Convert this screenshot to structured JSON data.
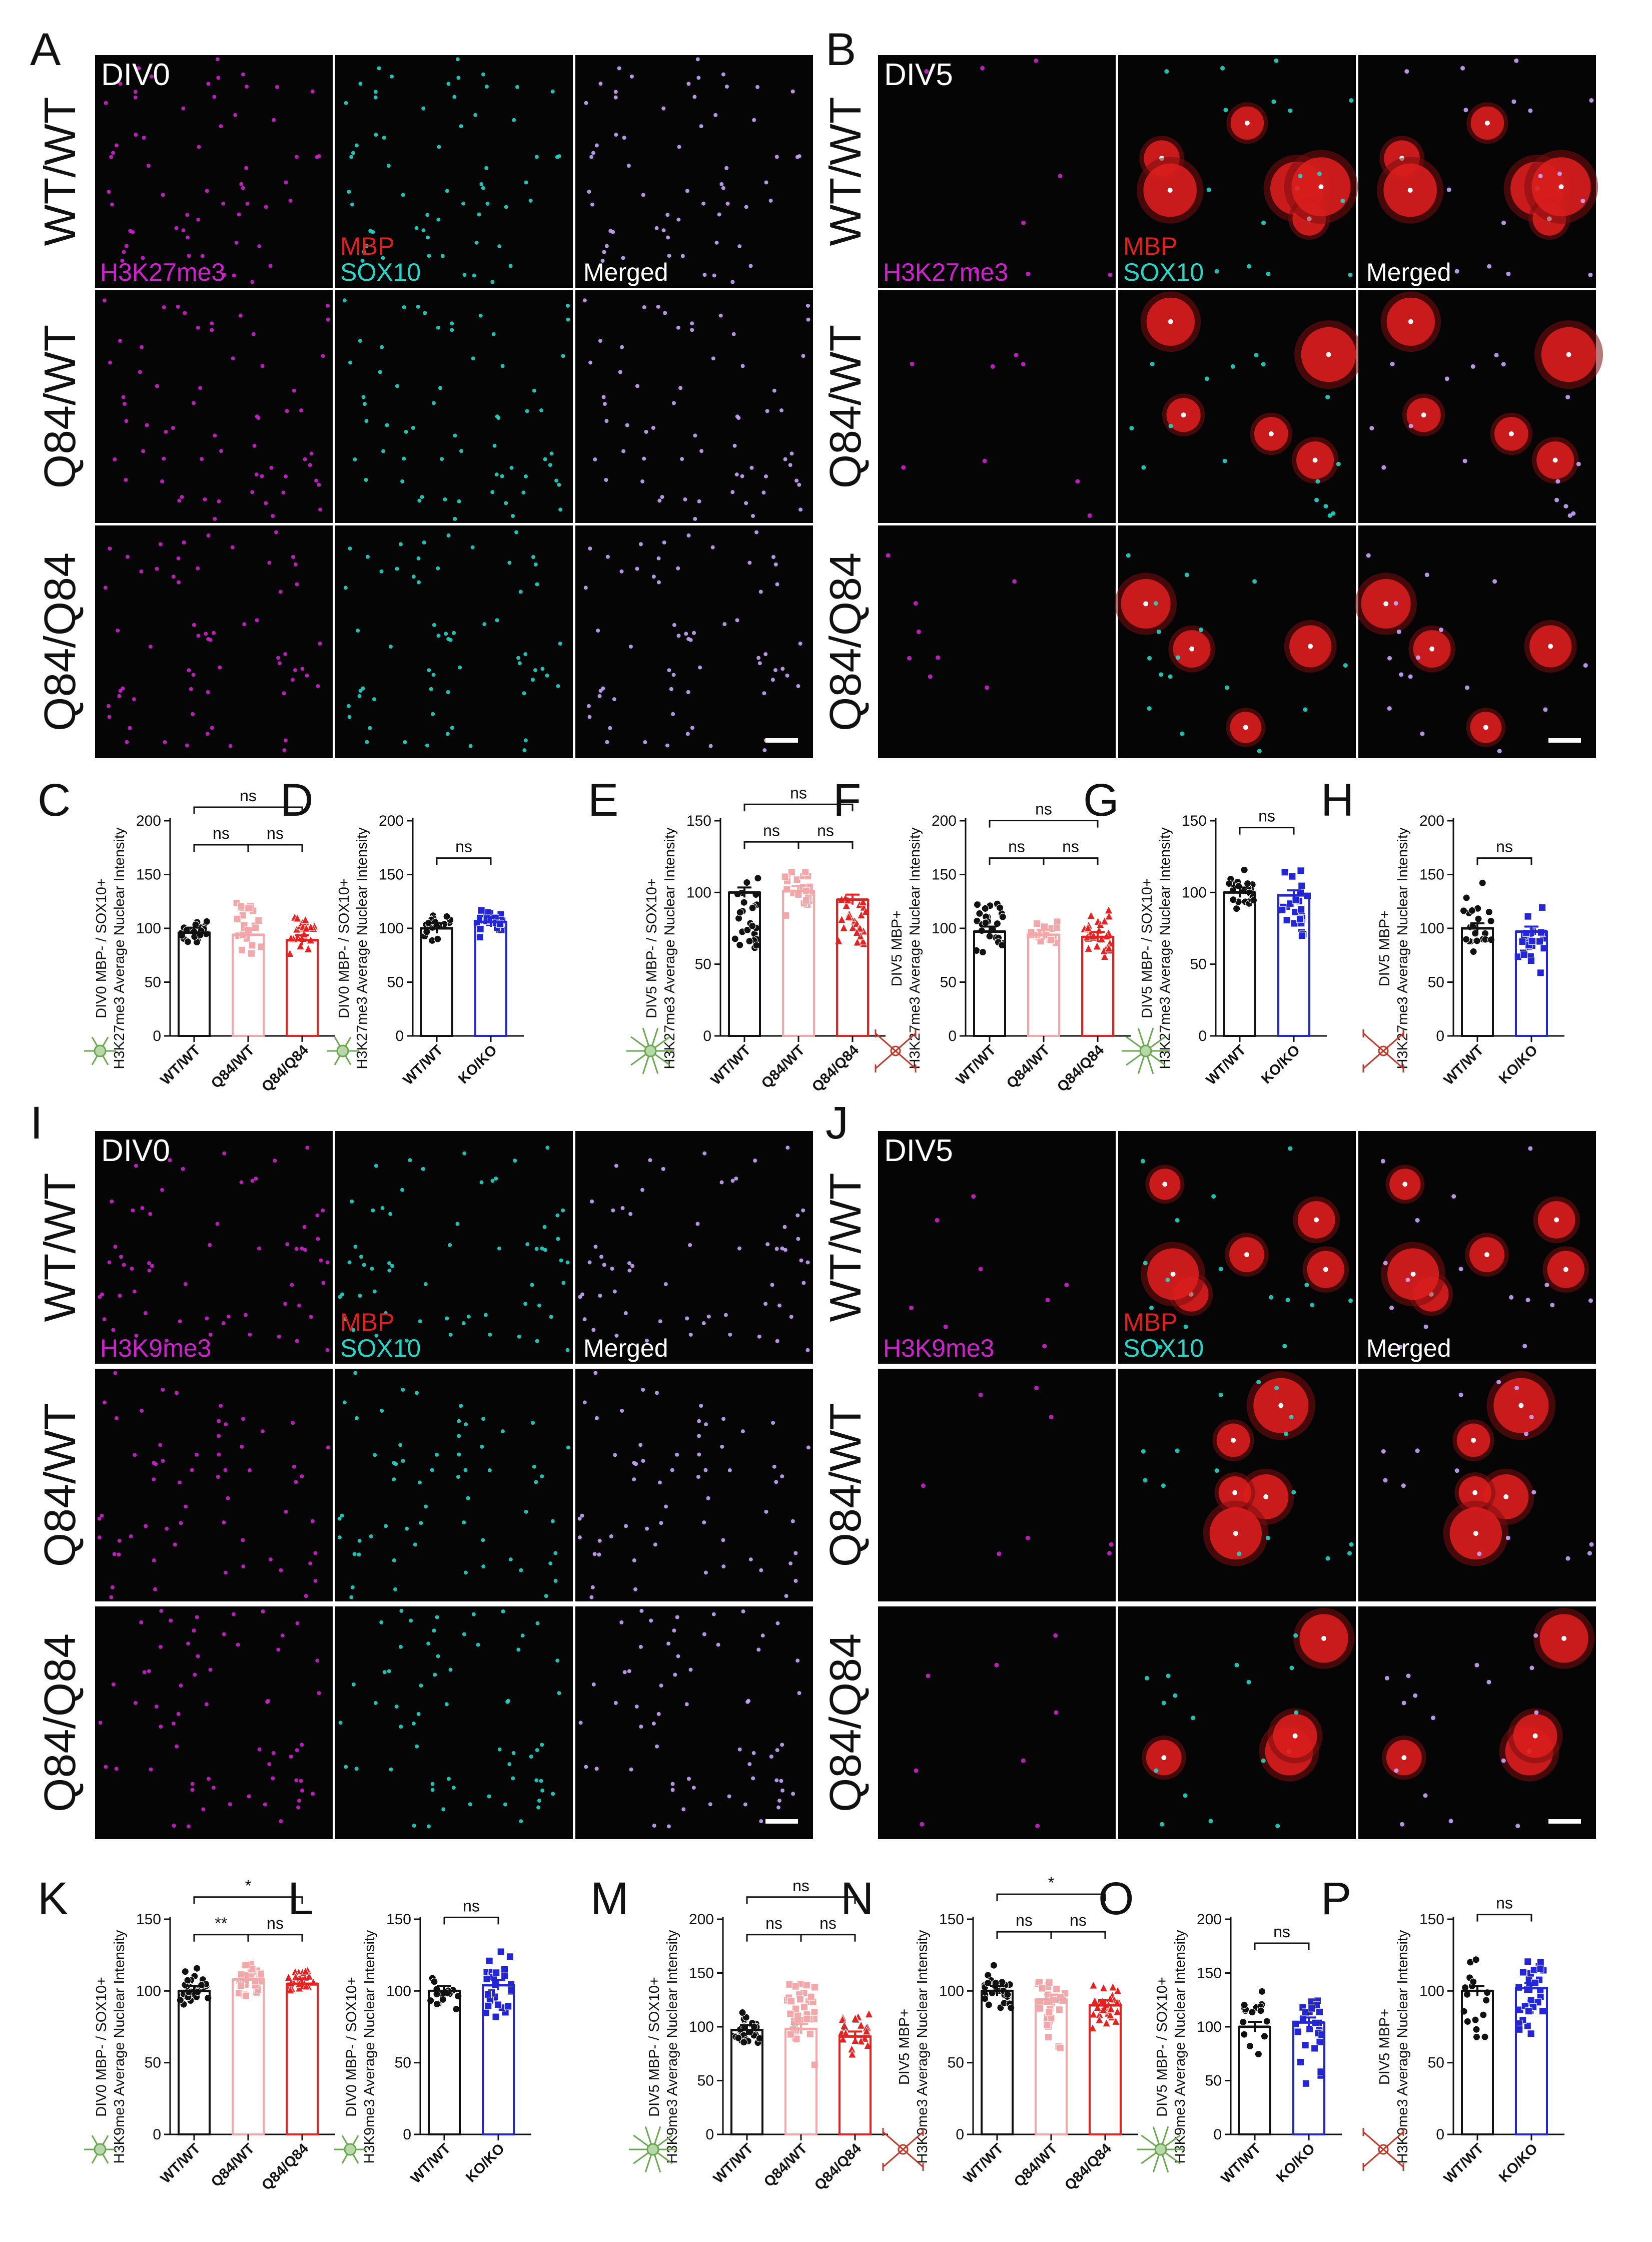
{
  "colors": {
    "WT/WT": "#111111",
    "Q84/WT": "#f4a7a9",
    "Q84/Q84": "#e8201f",
    "KO/KO": "#2326d8",
    "magenta": "#d020d0",
    "cyan": "#22d6c9",
    "red": "#e01f1f",
    "merged": "#c9a6ff",
    "micro_bg": "#050505",
    "opc_icon": "#6aa84f",
    "ol_icon": "#c0392b"
  },
  "icons": [
    "opc-cell-icon",
    "oligodendrocyte-icon"
  ],
  "panels": {
    "A": {
      "letter": "A",
      "div": "DIV0",
      "rows": [
        "WT/WT",
        "Q84/WT",
        "Q84/Q84"
      ],
      "channels": [
        "H3K27me3",
        "MBP",
        "SOX10",
        "Merged"
      ],
      "mature": false
    },
    "B": {
      "letter": "B",
      "div": "DIV5",
      "rows": [
        "WT/WT",
        "Q84/WT",
        "Q84/Q84"
      ],
      "channels": [
        "H3K27me3",
        "MBP",
        "SOX10",
        "Merged"
      ],
      "mature": true
    },
    "I": {
      "letter": "I",
      "div": "DIV0",
      "rows": [
        "WT/WT",
        "Q84/WT",
        "Q84/Q84"
      ],
      "channels": [
        "H3K9me3",
        "MBP",
        "SOX10",
        "Merged"
      ],
      "mature": false
    },
    "J": {
      "letter": "J",
      "div": "DIV5",
      "rows": [
        "WT/WT",
        "Q84/WT",
        "Q84/Q84"
      ],
      "channels": [
        "H3K9me3",
        "MBP",
        "SOX10",
        "Merged"
      ],
      "mature": true
    }
  },
  "chart_data": [
    {
      "id": "C",
      "type": "bar",
      "ylabel": [
        "DIV0 MBP- / SOX10+",
        "H3K27me3 Average Nuclear Intensity"
      ],
      "ylim": [
        0,
        200
      ],
      "ticks": [
        0,
        50,
        100,
        150,
        200
      ],
      "categories": [
        "WT/WT",
        "Q84/WT",
        "Q84/Q84"
      ],
      "values": [
        96,
        94,
        89
      ],
      "marker": [
        "circle",
        "square",
        "triangle"
      ],
      "n": [
        22,
        22,
        24
      ],
      "spread": [
        [
          82,
          110
        ],
        [
          62,
          160
        ],
        [
          60,
          130
        ]
      ],
      "comparisons": [
        [
          0,
          1,
          "ns"
        ],
        [
          1,
          2,
          "ns"
        ],
        [
          0,
          2,
          "ns"
        ]
      ],
      "icon": "opc"
    },
    {
      "id": "D",
      "type": "bar",
      "ylabel": [
        "DIV0 MBP- / SOX10+",
        "H3K27me3 Average Nuclear Intensity"
      ],
      "ylim": [
        0,
        200
      ],
      "ticks": [
        0,
        50,
        100,
        150,
        200
      ],
      "categories": [
        "WT/WT",
        "KO/KO"
      ],
      "values": [
        100,
        106
      ],
      "marker": [
        "circle",
        "square"
      ],
      "n": [
        22,
        26
      ],
      "spread": [
        [
          85,
          118
        ],
        [
          88,
          128
        ]
      ],
      "comparisons": [
        [
          0,
          1,
          "ns"
        ]
      ],
      "icon": "opc"
    },
    {
      "id": "E",
      "type": "bar",
      "ylabel": [
        "DIV5 MBP- / SOX10+",
        "H3K27me3 Average Nuclear Intensity"
      ],
      "ylim": [
        0,
        150
      ],
      "ticks": [
        0,
        50,
        100,
        150
      ],
      "categories": [
        "WT/WT",
        "Q84/WT",
        "Q84/Q84"
      ],
      "values": [
        100,
        101,
        95
      ],
      "marker": [
        "circle",
        "square",
        "triangle"
      ],
      "n": [
        26,
        22,
        26
      ],
      "spread": [
        [
          45,
          120
        ],
        [
          78,
          122
        ],
        [
          40,
          118
        ]
      ],
      "comparisons": [
        [
          0,
          1,
          "ns"
        ],
        [
          1,
          2,
          "ns"
        ],
        [
          0,
          2,
          "ns"
        ]
      ],
      "icon": "ol"
    },
    {
      "id": "F",
      "type": "bar",
      "ylabel": [
        "DIV5 MBP+",
        "H3K27me3 Average Nuclear Intensity"
      ],
      "ylim": [
        0,
        200
      ],
      "ticks": [
        0,
        50,
        100,
        150,
        200
      ],
      "categories": [
        "WT/WT",
        "Q84/WT",
        "Q84/Q84"
      ],
      "values": [
        97,
        94,
        92
      ],
      "marker": [
        "circle",
        "square",
        "triangle"
      ],
      "n": [
        26,
        20,
        28
      ],
      "spread": [
        [
          70,
          140
        ],
        [
          78,
          112
        ],
        [
          55,
          130
        ]
      ],
      "comparisons": [
        [
          0,
          1,
          "ns"
        ],
        [
          1,
          2,
          "ns"
        ],
        [
          0,
          2,
          "ns"
        ]
      ],
      "icon": "mbp"
    },
    {
      "id": "G",
      "type": "bar",
      "ylabel": [
        "DIV5 MBP- / SOX10+",
        "H3K27me3 Average Nuclear Intensity"
      ],
      "ylim": [
        0,
        150
      ],
      "ticks": [
        0,
        50,
        100,
        150
      ],
      "categories": [
        "WT/WT",
        "KO/KO"
      ],
      "values": [
        100,
        98
      ],
      "marker": [
        "circle",
        "square"
      ],
      "n": [
        24,
        24
      ],
      "spread": [
        [
          80,
          122
        ],
        [
          40,
          132
        ]
      ],
      "comparisons": [
        [
          0,
          1,
          "ns"
        ]
      ],
      "icon": "ol"
    },
    {
      "id": "H",
      "type": "bar",
      "ylabel": [
        "DIV5 MBP+",
        "H3K27me3 Average Nuclear Intensity"
      ],
      "ylim": [
        0,
        200
      ],
      "ticks": [
        0,
        50,
        100,
        150,
        200
      ],
      "categories": [
        "WT/WT",
        "KO/KO"
      ],
      "values": [
        100,
        97
      ],
      "marker": [
        "circle",
        "square"
      ],
      "n": [
        22,
        24
      ],
      "spread": [
        [
          50,
          145
        ],
        [
          45,
          132
        ]
      ],
      "comparisons": [
        [
          0,
          1,
          "ns"
        ]
      ],
      "icon": "mbp"
    },
    {
      "id": "K",
      "type": "bar",
      "ylabel": [
        "DIV0 MBP- / SOX10+",
        "H3K9me3 Average Nuclear Intensity"
      ],
      "ylim": [
        0,
        150
      ],
      "ticks": [
        0,
        50,
        100,
        150
      ],
      "categories": [
        "WT/WT",
        "Q84/WT",
        "Q84/Q84"
      ],
      "values": [
        100,
        108,
        105
      ],
      "marker": [
        "circle",
        "square",
        "triangle"
      ],
      "n": [
        30,
        30,
        26
      ],
      "spread": [
        [
          85,
          118
        ],
        [
          90,
          126
        ],
        [
          92,
          122
        ]
      ],
      "comparisons": [
        [
          0,
          1,
          "**"
        ],
        [
          1,
          2,
          "ns"
        ],
        [
          0,
          2,
          "*"
        ]
      ],
      "icon": "opc"
    },
    {
      "id": "L",
      "type": "bar",
      "ylabel": [
        "DIV0 MBP- / SOX10+",
        "H3K9me3 Average Nuclear Intensity"
      ],
      "ylim": [
        0,
        150
      ],
      "ticks": [
        0,
        50,
        100,
        150
      ],
      "categories": [
        "WT/WT",
        "KO/KO"
      ],
      "values": [
        100,
        104
      ],
      "marker": [
        "circle",
        "square"
      ],
      "n": [
        16,
        28
      ],
      "spread": [
        [
          80,
          118
        ],
        [
          70,
          138
        ]
      ],
      "comparisons": [
        [
          0,
          1,
          "ns"
        ]
      ],
      "icon": "opc"
    },
    {
      "id": "M",
      "type": "bar",
      "ylabel": [
        "DIV5 MBP- / SOX10+",
        "H3K9me3 Average Nuclear Intensity"
      ],
      "ylim": [
        0,
        200
      ],
      "ticks": [
        0,
        50,
        100,
        150,
        200
      ],
      "categories": [
        "WT/WT",
        "Q84/WT",
        "Q84/Q84"
      ],
      "values": [
        97,
        98,
        91
      ],
      "marker": [
        "circle",
        "square",
        "triangle"
      ],
      "n": [
        26,
        36,
        22
      ],
      "spread": [
        [
          70,
          120
        ],
        [
          55,
          168
        ],
        [
          62,
          130
        ]
      ],
      "comparisons": [
        [
          0,
          1,
          "ns"
        ],
        [
          1,
          2,
          "ns"
        ],
        [
          0,
          2,
          "ns"
        ]
      ],
      "icon": "ol"
    },
    {
      "id": "N",
      "type": "bar",
      "ylabel": [
        "DIV5 MBP+",
        "H3K9me3 Average Nuclear Intensity"
      ],
      "ylim": [
        0,
        150
      ],
      "ticks": [
        0,
        50,
        100,
        150
      ],
      "categories": [
        "WT/WT",
        "Q84/WT",
        "Q84/Q84"
      ],
      "values": [
        100,
        94,
        90
      ],
      "marker": [
        "circle",
        "square",
        "triangle"
      ],
      "n": [
        28,
        30,
        30
      ],
      "spread": [
        [
          75,
          125
        ],
        [
          55,
          128
        ],
        [
          65,
          115
        ]
      ],
      "comparisons": [
        [
          0,
          1,
          "ns"
        ],
        [
          1,
          2,
          "ns"
        ],
        [
          0,
          2,
          "*"
        ]
      ],
      "icon": "mbp"
    },
    {
      "id": "O",
      "type": "bar",
      "ylabel": [
        "DIV5 MBP- / SOX10+",
        "H3K9me3 Average Nuclear Intensity"
      ],
      "ylim": [
        0,
        200
      ],
      "ticks": [
        0,
        50,
        100,
        150,
        200
      ],
      "categories": [
        "WT/WT",
        "KO/KO"
      ],
      "values": [
        100,
        104
      ],
      "marker": [
        "circle",
        "square"
      ],
      "n": [
        16,
        24
      ],
      "spread": [
        [
          60,
          150
        ],
        [
          25,
          160
        ]
      ],
      "comparisons": [
        [
          0,
          1,
          "ns"
        ]
      ],
      "icon": "ol"
    },
    {
      "id": "P",
      "type": "bar",
      "ylabel": [
        "DIV5 MBP+",
        "H3K9me3 Average Nuclear Intensity"
      ],
      "ylim": [
        0,
        150
      ],
      "ticks": [
        0,
        50,
        100,
        150
      ],
      "categories": [
        "WT/WT",
        "KO/KO"
      ],
      "values": [
        100,
        102
      ],
      "marker": [
        "circle",
        "square"
      ],
      "n": [
        16,
        30
      ],
      "spread": [
        [
          45,
          130
        ],
        [
          55,
          140
        ]
      ],
      "comparisons": [
        [
          0,
          1,
          "ns"
        ]
      ],
      "icon": "mbp"
    }
  ]
}
